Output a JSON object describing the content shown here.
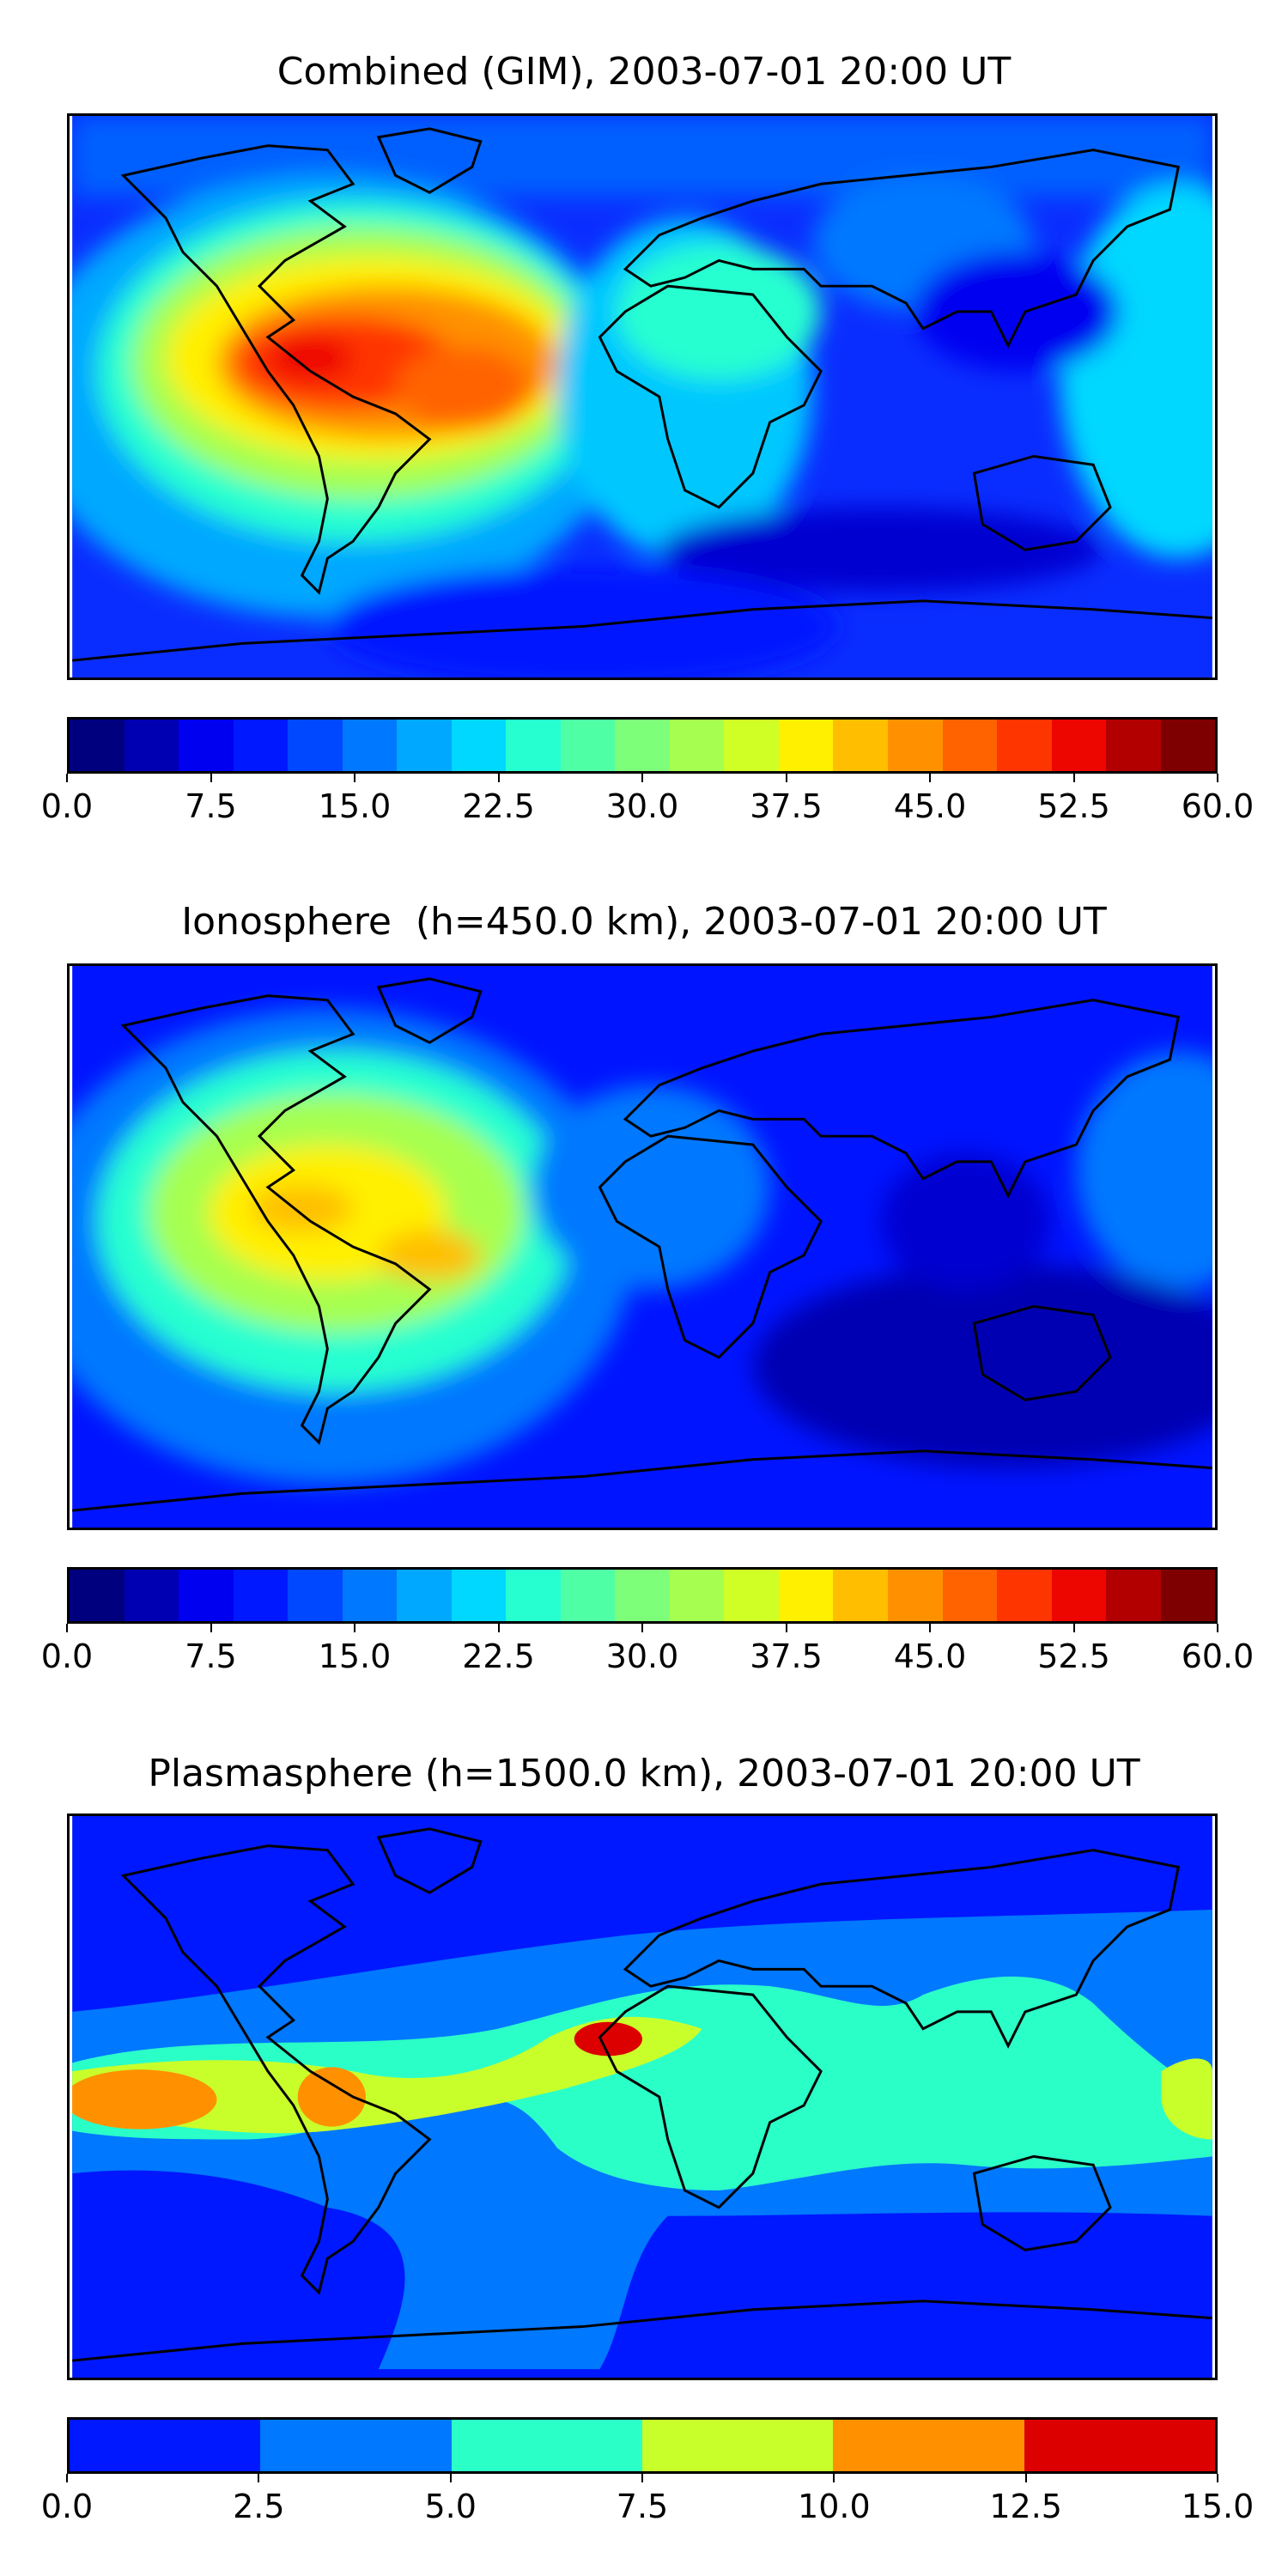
{
  "panels": [
    {
      "title": "Combined (GIM), 2003-07-01 20:00 UT",
      "colorbar": {
        "min": 0.0,
        "max": 60.0,
        "tick_labels": [
          "0.0",
          "7.5",
          "15.0",
          "22.5",
          "30.0",
          "37.5",
          "45.0",
          "52.5",
          "60.0"
        ],
        "colors": [
          "#00007f",
          "#0000b2",
          "#0000f0",
          "#0018ff",
          "#0048ff",
          "#0078ff",
          "#00a8ff",
          "#00d8ff",
          "#26ffd0",
          "#4fffa6",
          "#7dff79",
          "#a6ff50",
          "#d0ff26",
          "#fff000",
          "#ffbf00",
          "#ff9100",
          "#ff6300",
          "#ff3500",
          "#ed0500",
          "#b20000",
          "#7f0000"
        ]
      },
      "map": {
        "background": "#0a2dff",
        "regions": [
          {
            "name": "high-latitude-north",
            "color": "#0050ff"
          },
          {
            "name": "equatorial-pacific-east",
            "color": "#d8ff22"
          },
          {
            "name": "crest-central-america",
            "color": "#ff3a00"
          },
          {
            "name": "africa-band",
            "color": "#00c8ff"
          },
          {
            "name": "pacific-west-band",
            "color": "#00b0ff"
          }
        ]
      }
    },
    {
      "title": "Ionosphere  (h=450.0 km), 2003-07-01 20:00 UT",
      "colorbar": {
        "min": 0.0,
        "max": 60.0,
        "tick_labels": [
          "0.0",
          "7.5",
          "15.0",
          "22.5",
          "30.0",
          "37.5",
          "45.0",
          "52.5",
          "60.0"
        ],
        "colors": [
          "#00007f",
          "#0000b2",
          "#0000f0",
          "#0018ff",
          "#0048ff",
          "#0078ff",
          "#00a8ff",
          "#00d8ff",
          "#26ffd0",
          "#4fffa6",
          "#7dff79",
          "#a6ff50",
          "#d0ff26",
          "#fff000",
          "#ffbf00",
          "#ff9100",
          "#ff6300",
          "#ff3500",
          "#ed0500",
          "#b20000",
          "#7f0000"
        ]
      },
      "map": {
        "background": "#0014ff",
        "regions": [
          {
            "name": "americas-band",
            "color": "#4fffa6"
          },
          {
            "name": "crest-central-america",
            "color": "#ffbf00"
          },
          {
            "name": "south-indian-ocean-low",
            "color": "#0000b2"
          }
        ]
      }
    },
    {
      "title": "Plasmasphere (h=1500.0 km), 2003-07-01 20:00 UT",
      "colorbar": {
        "min": 0.0,
        "max": 15.0,
        "tick_labels": [
          "0.0",
          "2.5",
          "5.0",
          "7.5",
          "10.0",
          "12.5",
          "15.0"
        ],
        "colors": [
          "#0018ff",
          "#0078ff",
          "#2bffc8",
          "#c8ff2b",
          "#ff9100",
          "#dd0000"
        ]
      },
      "map": {
        "background": "#0018ff",
        "regions": [
          {
            "name": "mid-band",
            "color": "#0078ff"
          },
          {
            "name": "equatorial-band",
            "color": "#2bffc8"
          },
          {
            "name": "pacific-crest",
            "color": "#c8ff2b"
          },
          {
            "name": "pacific-max",
            "color": "#ff9100"
          },
          {
            "name": "africa-max",
            "color": "#dd0000"
          }
        ]
      }
    }
  ]
}
